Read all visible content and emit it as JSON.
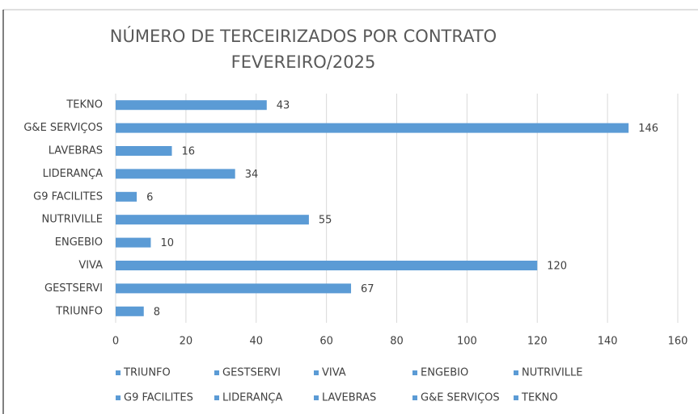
{
  "chart_data": {
    "type": "bar",
    "orientation": "horizontal",
    "title": [
      "NÚMERO DE TERCEIRIZADOS POR CONTRATO",
      "FEVEREIRO/2025"
    ],
    "categories": [
      "TRIUNFO",
      "GESTSERVI",
      "VIVA",
      "ENGEBIO",
      "NUTRIVILLE",
      "G9 FACILITES",
      "LIDERANÇA",
      "LAVEBRAS",
      "G&E SERVIÇOS",
      "TEKNO"
    ],
    "values": [
      8,
      67,
      120,
      10,
      55,
      6,
      34,
      16,
      146,
      43
    ],
    "color": "#5b9bd5",
    "xlim": [
      0,
      160
    ],
    "xticks": [
      0,
      20,
      40,
      60,
      80,
      100,
      120,
      140,
      160
    ],
    "grid": true,
    "legend": "bottom"
  }
}
